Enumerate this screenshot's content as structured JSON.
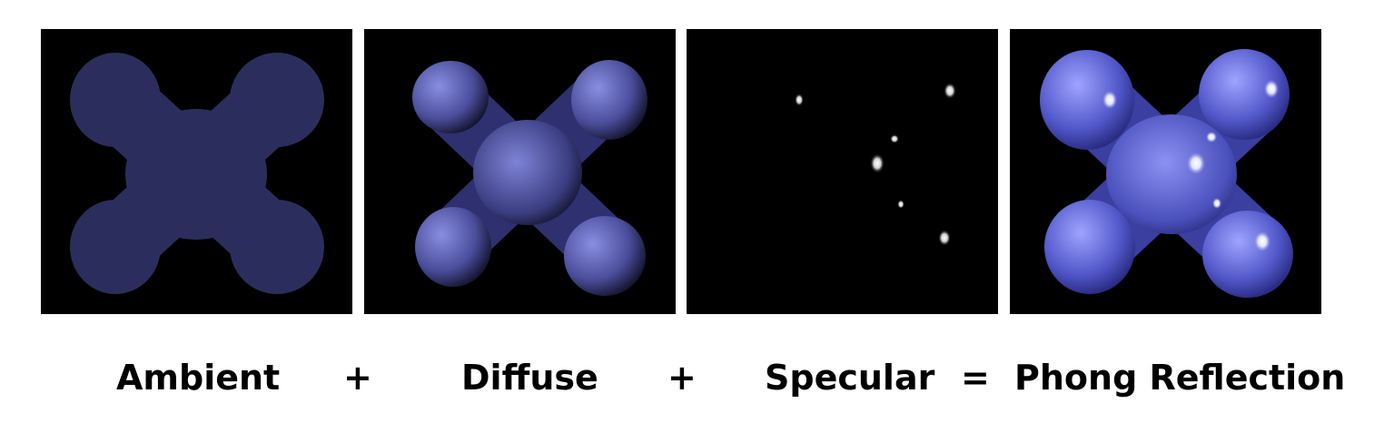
{
  "captions": {
    "ambient": "Ambient",
    "plus_1": "+",
    "diffuse": "Diffuse",
    "plus_2": "+",
    "specular": "Specular",
    "equals": "=",
    "phong": "Phong Reflection"
  },
  "colors": {
    "background": "#000000",
    "ambient_fill": "#2b2e5c",
    "diffuse_light": "#8a8ee2",
    "diffuse_dark": "#000000",
    "phong_light": "#9ea4ff",
    "phong_dark": "#1a1c66",
    "highlight": "#ffffff"
  }
}
